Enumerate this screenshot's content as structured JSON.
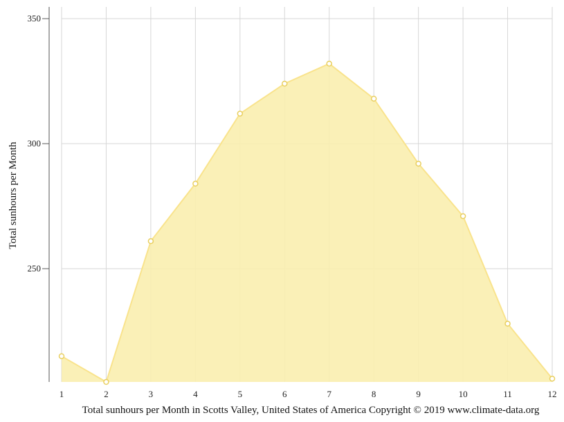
{
  "chart_data": {
    "type": "area",
    "x": [
      1,
      2,
      3,
      4,
      5,
      6,
      7,
      8,
      9,
      10,
      11,
      12
    ],
    "series": [
      {
        "values": [
          215,
          204,
          261,
          284,
          312,
          324,
          332,
          318,
          292,
          271,
          228,
          206
        ]
      }
    ],
    "xlabel": "Total sunhours per Month in Scotts Valley, United States of America Copyright © 2019 www.climate-data.org",
    "ylabel": "Total sunhours per Month",
    "yticks": [
      250,
      300,
      350
    ],
    "ylim": [
      204,
      355
    ],
    "grid": true,
    "fill_color": "#f9eeaf",
    "line_color": "#f9e38c",
    "marker_color": "#e9cf5f"
  }
}
